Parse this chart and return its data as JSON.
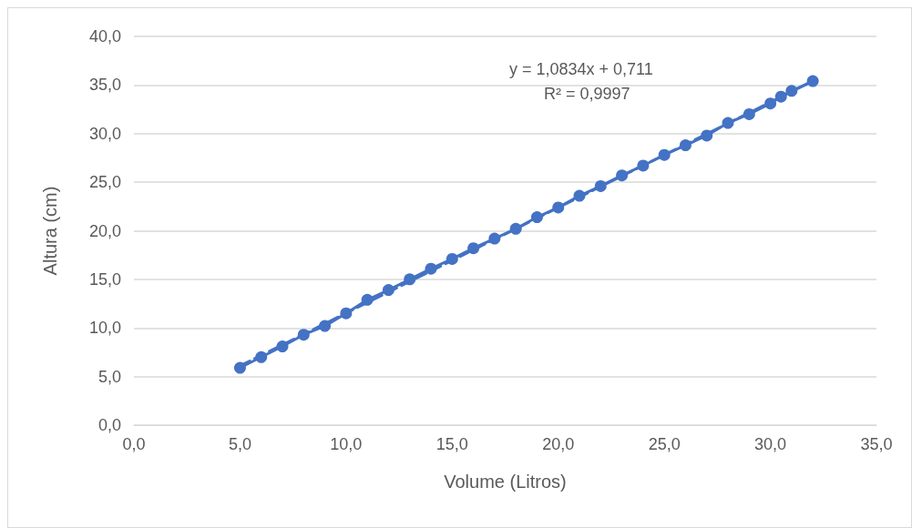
{
  "chart_data": {
    "type": "line",
    "xlabel": "Volume (Litros)",
    "ylabel": "Altura (cm)",
    "annotations": [
      "y = 1,0834x + 0,711",
      "R² = 0,9997"
    ],
    "x": [
      5,
      6,
      7,
      8,
      9,
      10,
      11,
      12,
      13,
      14,
      15,
      16,
      17,
      18,
      19,
      20,
      21,
      22,
      23,
      24,
      25,
      26,
      27,
      28,
      29,
      30,
      30.5,
      31,
      32
    ],
    "series": [
      {
        "color": "#4472c4",
        "marker": "circle",
        "line_style": "solid",
        "values": [
          5.9,
          7.0,
          8.1,
          9.3,
          10.2,
          11.5,
          12.9,
          13.9,
          15.0,
          16.1,
          17.1,
          18.2,
          19.2,
          20.2,
          21.4,
          22.4,
          23.6,
          24.6,
          25.7,
          26.7,
          27.8,
          28.8,
          29.8,
          31.1,
          32.0,
          33.1,
          33.8,
          34.4,
          35.4
        ]
      },
      {
        "type": "line",
        "color": "#4472c4",
        "marker": "none",
        "line_style": "dashed",
        "x": [
          5,
          32
        ],
        "values": [
          6.1,
          35.4
        ]
      }
    ],
    "xlim": [
      0,
      35
    ],
    "xticks": [
      {
        "value": 0,
        "label": "0,0"
      },
      {
        "value": 5,
        "label": "5,0"
      },
      {
        "value": 10,
        "label": "10,0"
      },
      {
        "value": 15,
        "label": "15,0"
      },
      {
        "value": 20,
        "label": "20,0"
      },
      {
        "value": 25,
        "label": "25,0"
      },
      {
        "value": 30,
        "label": "30,0"
      },
      {
        "value": 35,
        "label": "35,0"
      }
    ],
    "ylim": [
      0,
      40
    ],
    "yticks": [
      {
        "value": 0,
        "label": "0,0"
      },
      {
        "value": 5,
        "label": "5,0"
      },
      {
        "value": 10,
        "label": "10,0"
      },
      {
        "value": 15,
        "label": "15,0"
      },
      {
        "value": 20,
        "label": "20,0"
      },
      {
        "value": 25,
        "label": "25,0"
      },
      {
        "value": 30,
        "label": "30,0"
      },
      {
        "value": 35,
        "label": "35,0"
      },
      {
        "value": 40,
        "label": "40,0"
      }
    ],
    "grid": "y"
  }
}
